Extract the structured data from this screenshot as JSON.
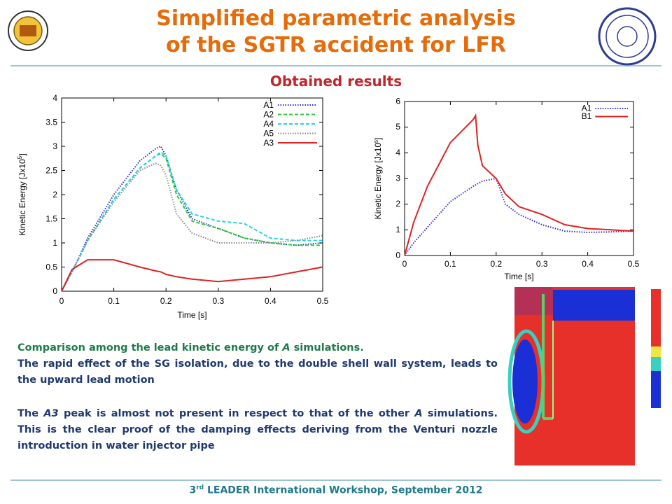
{
  "header": {
    "title_line1": "Simplified parametric analysis",
    "title_line2": "of the SGTR accident for LFR",
    "subtitle": "Obtained results"
  },
  "chart_data": [
    {
      "type": "line",
      "x_label": "Time [s]",
      "y_label": "Kinetic Energy [Jx10",
      "y_label_sup": "5",
      "y_label_end": "]",
      "xlim": [
        0,
        0.5
      ],
      "xticks": [
        0,
        0.1,
        0.2,
        0.3,
        0.4,
        0.5
      ],
      "ylim": [
        0,
        4
      ],
      "yticks": [
        0,
        0.5,
        1,
        1.5,
        2,
        2.5,
        3,
        3.5,
        4
      ],
      "legend": "top-right",
      "x": [
        0,
        0.02,
        0.05,
        0.1,
        0.15,
        0.18,
        0.19,
        0.2,
        0.22,
        0.25,
        0.3,
        0.35,
        0.4,
        0.45,
        0.5
      ],
      "series": [
        {
          "name": "A1",
          "color": "#2b2bd6",
          "style": "dotted",
          "values": [
            0,
            0.4,
            1.1,
            2.0,
            2.7,
            2.95,
            3.0,
            2.8,
            2.1,
            1.5,
            1.3,
            1.1,
            1.0,
            0.95,
            1.0
          ]
        },
        {
          "name": "A2",
          "color": "#33cc33",
          "style": "dashed",
          "values": [
            0,
            0.4,
            1.05,
            1.9,
            2.55,
            2.8,
            2.85,
            2.75,
            2.0,
            1.45,
            1.3,
            1.1,
            1.0,
            0.95,
            0.95
          ]
        },
        {
          "name": "A4",
          "color": "#22d4e6",
          "style": "dashed",
          "values": [
            0,
            0.4,
            1.05,
            1.9,
            2.55,
            2.8,
            2.88,
            2.8,
            2.1,
            1.6,
            1.45,
            1.4,
            1.1,
            1.05,
            1.05
          ]
        },
        {
          "name": "A5",
          "color": "#888888",
          "style": "dotted",
          "values": [
            0,
            0.4,
            1.05,
            1.85,
            2.5,
            2.65,
            2.6,
            2.4,
            1.6,
            1.2,
            1.0,
            1.0,
            1.0,
            1.05,
            1.15
          ]
        },
        {
          "name": "A3",
          "color": "#dd2222",
          "style": "solid",
          "values": [
            0,
            0.45,
            0.65,
            0.65,
            0.5,
            0.42,
            0.4,
            0.35,
            0.3,
            0.25,
            0.2,
            0.25,
            0.3,
            0.4,
            0.5
          ]
        }
      ]
    },
    {
      "type": "line",
      "x_label": "Time [s]",
      "y_label": "Kinetic Energy [Jx10",
      "y_label_sup": "5",
      "y_label_end": "]",
      "xlim": [
        0,
        0.5
      ],
      "xticks": [
        0,
        0.1,
        0.2,
        0.3,
        0.4,
        0.5
      ],
      "ylim": [
        0,
        6
      ],
      "yticks": [
        0,
        1,
        2,
        3,
        4,
        5,
        6
      ],
      "legend": "top-right",
      "x": [
        0,
        0.02,
        0.05,
        0.1,
        0.15,
        0.155,
        0.16,
        0.17,
        0.2,
        0.22,
        0.25,
        0.3,
        0.35,
        0.4,
        0.45,
        0.5
      ],
      "series": [
        {
          "name": "A1",
          "color": "#2b2bd6",
          "style": "dotted",
          "values": [
            0,
            0.5,
            1.1,
            2.1,
            2.7,
            2.75,
            2.8,
            2.9,
            3.0,
            2.0,
            1.6,
            1.2,
            0.95,
            0.9,
            0.92,
            0.95
          ]
        },
        {
          "name": "B1",
          "color": "#dd2222",
          "style": "solid",
          "values": [
            0,
            1.3,
            2.7,
            4.4,
            5.3,
            5.45,
            4.3,
            3.5,
            3.0,
            2.4,
            1.9,
            1.6,
            1.2,
            1.05,
            1.0,
            0.95
          ]
        }
      ]
    }
  ],
  "text": {
    "comparison": [
      "Comparison among the lead kinetic energy of ",
      "A",
      " simulations."
    ],
    "effect": "The rapid effect of the SG isolation, due to the double shell wall system, leads to the upward lead motion",
    "peak": [
      "The ",
      "A3",
      " peak is almost not present in respect to that of the other ",
      "A",
      " simulations. This is the clear proof of the damping effects deriving from the Venturi nozzle introduction in water injector pipe"
    ]
  },
  "footer": [
    "3",
    "rd",
    " LEADER International Workshop, September 2012"
  ]
}
